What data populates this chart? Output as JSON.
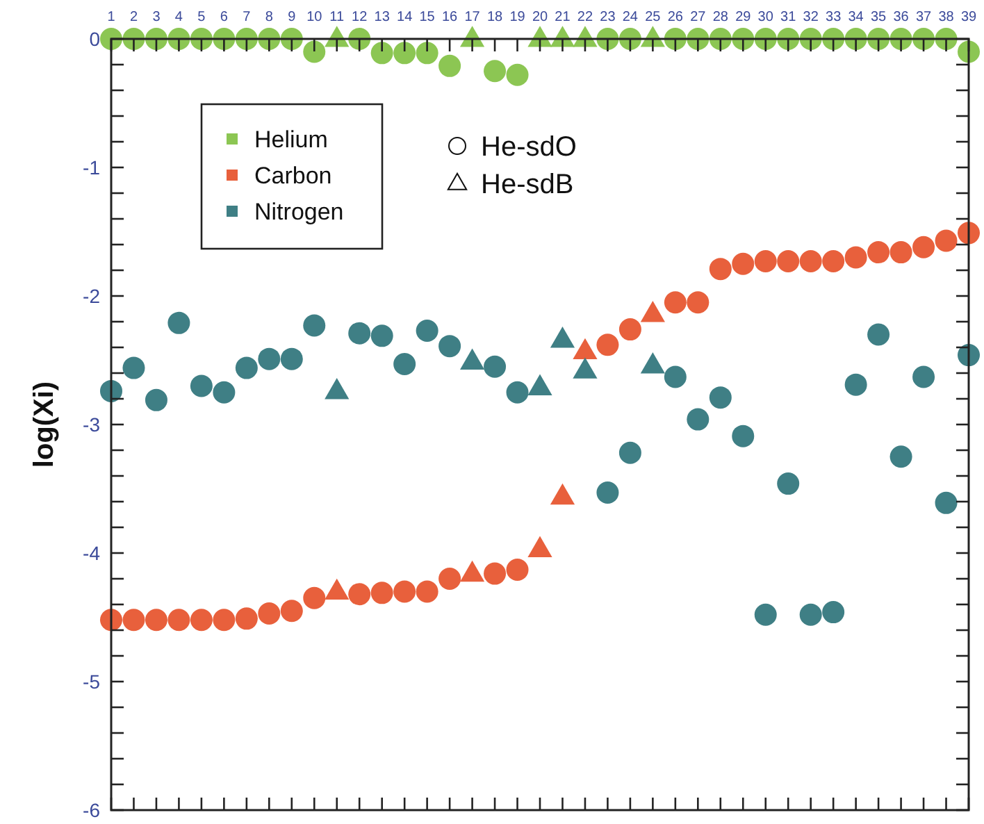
{
  "chart_data": {
    "type": "scatter",
    "ylabel": "log(Xi)",
    "xlim": [
      1,
      39
    ],
    "ylim": [
      -6,
      0
    ],
    "xticks": [
      1,
      2,
      3,
      4,
      5,
      6,
      7,
      8,
      9,
      10,
      11,
      12,
      13,
      14,
      15,
      16,
      17,
      18,
      19,
      20,
      21,
      22,
      23,
      24,
      25,
      26,
      27,
      28,
      29,
      30,
      31,
      32,
      33,
      34,
      35,
      36,
      37,
      38,
      39
    ],
    "yticks": [
      0,
      {
        "value": -0.2,
        "label": null
      },
      {
        "value": -0.4,
        "label": null
      },
      {
        "value": -0.6,
        "label": null
      },
      {
        "value": -0.8,
        "label": null
      },
      -1,
      {
        "value": -1.2,
        "label": null
      },
      {
        "value": -1.4,
        "label": null
      },
      {
        "value": -1.6,
        "label": null
      },
      {
        "value": -1.8,
        "label": null
      },
      -2,
      {
        "value": -2.2,
        "label": null
      },
      {
        "value": -2.4,
        "label": null
      },
      {
        "value": -2.6,
        "label": null
      },
      {
        "value": -2.8,
        "label": null
      },
      -3,
      {
        "value": -3.2,
        "label": null
      },
      {
        "value": -3.4,
        "label": null
      },
      {
        "value": -3.6,
        "label": null
      },
      {
        "value": -3.8,
        "label": null
      },
      -4,
      {
        "value": -4.2,
        "label": null
      },
      {
        "value": -4.4,
        "label": null
      },
      {
        "value": -4.6,
        "label": null
      },
      {
        "value": -4.8,
        "label": null
      },
      -5,
      {
        "value": -5.2,
        "label": null
      },
      {
        "value": -5.4,
        "label": null
      },
      {
        "value": -5.6,
        "label": null
      },
      {
        "value": -5.8,
        "label": null
      },
      -6
    ],
    "grid": false,
    "legend": "top left",
    "annotations": [
      "He-sdO",
      "He-sdB"
    ],
    "series": [
      {
        "name": "Helium",
        "color": "#8cc653",
        "marker": "circle",
        "x": [
          1,
          2,
          3,
          4,
          5,
          6,
          7,
          8,
          9,
          10,
          12,
          13,
          14,
          15,
          16,
          18,
          19,
          23,
          24,
          26,
          27,
          28,
          29,
          30,
          31,
          32,
          33,
          34,
          35,
          36,
          37,
          38,
          39
        ],
        "values": [
          0,
          0,
          0,
          0,
          0,
          0,
          0,
          0,
          0,
          -0.1,
          0,
          -0.11,
          -0.11,
          -0.11,
          -0.21,
          -0.25,
          -0.28,
          0,
          0,
          0,
          0,
          0,
          0,
          0,
          0,
          0,
          0,
          0,
          0,
          0,
          0,
          0,
          -0.1
        ]
      },
      {
        "color": "#8cc653",
        "marker": "triangle",
        "x": [
          11,
          17,
          20,
          21,
          22,
          25
        ],
        "values": [
          0,
          0,
          0,
          0,
          0,
          0
        ]
      },
      {
        "name": "Carbon",
        "color": "#e8603c",
        "marker": "circle",
        "x": [
          1,
          2,
          3,
          4,
          5,
          6,
          7,
          8,
          9,
          10,
          12,
          13,
          14,
          15,
          16,
          18,
          19,
          23,
          24,
          26,
          27,
          28,
          29,
          30,
          31,
          32,
          33,
          34,
          35,
          36,
          37,
          38,
          39
        ],
        "values": [
          -4.52,
          -4.52,
          -4.52,
          -4.52,
          -4.52,
          -4.52,
          -4.51,
          -4.47,
          -4.45,
          -4.35,
          -4.32,
          -4.31,
          -4.3,
          -4.3,
          -4.2,
          -4.16,
          -4.13,
          -2.38,
          -2.26,
          -2.05,
          -2.05,
          -1.79,
          -1.75,
          -1.73,
          -1.73,
          -1.73,
          -1.73,
          -1.7,
          -1.66,
          -1.66,
          -1.62,
          -1.57,
          -1.51
        ]
      },
      {
        "color": "#e8603c",
        "marker": "triangle",
        "x": [
          11,
          17,
          20,
          21,
          22,
          25
        ],
        "values": [
          -4.3,
          -4.16,
          -3.97,
          -3.56,
          -2.43,
          -2.14
        ]
      },
      {
        "name": "Nitrogen",
        "color": "#3f7f85",
        "marker": "circle",
        "x": [
          1,
          2,
          3,
          4,
          5,
          6,
          7,
          8,
          9,
          10,
          12,
          13,
          14,
          15,
          16,
          18,
          19,
          23,
          24,
          26,
          27,
          28,
          29,
          30,
          31,
          32,
          33,
          34,
          35,
          36,
          37,
          38,
          39
        ],
        "values": [
          -2.74,
          -2.56,
          -2.81,
          -2.21,
          -2.7,
          -2.75,
          -2.56,
          -2.49,
          -2.49,
          -2.23,
          -2.29,
          -2.31,
          -2.53,
          -2.27,
          -2.39,
          -2.55,
          -2.75,
          -3.53,
          -3.22,
          -2.63,
          -2.96,
          -2.79,
          -3.09,
          -4.48,
          -3.46,
          -4.48,
          -4.46,
          -2.69,
          -2.3,
          -3.25,
          -2.63,
          -3.61,
          -2.46
        ]
      },
      {
        "color": "#3f7f85",
        "marker": "triangle",
        "x": [
          11,
          17,
          20,
          21,
          22,
          25
        ],
        "values": [
          -2.74,
          -2.51,
          -2.71,
          -2.34,
          -2.58,
          -2.54
        ]
      }
    ]
  }
}
